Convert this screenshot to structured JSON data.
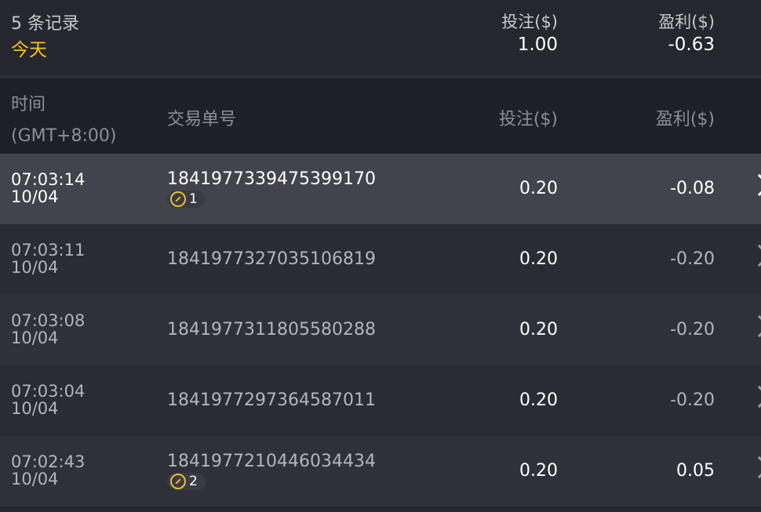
{
  "summary": {
    "count": "5 条记录",
    "period": "今天",
    "bet_label": "投注($)",
    "bet_total": "1.00",
    "pl_label": "盈利($)",
    "pl_total": "-0.63"
  },
  "header": {
    "time": "时间",
    "timezone": "(GMT+8:00)",
    "id": "交易单号",
    "bet": "投注($)",
    "pl": "盈利($)"
  },
  "rows": [
    {
      "time": "07:03:14",
      "date": "10/04",
      "id": "1841977339475399170",
      "badge": "1",
      "bet": "0.20",
      "pl": "-0.08"
    },
    {
      "time": "07:03:11",
      "date": "10/04",
      "id": "1841977327035106819",
      "badge": null,
      "bet": "0.20",
      "pl": "-0.20"
    },
    {
      "time": "07:03:08",
      "date": "10/04",
      "id": "1841977311805580288",
      "badge": null,
      "bet": "0.20",
      "pl": "-0.20"
    },
    {
      "time": "07:03:04",
      "date": "10/04",
      "id": "1841977297364587011",
      "badge": null,
      "bet": "0.20",
      "pl": "-0.20"
    },
    {
      "time": "07:02:43",
      "date": "10/04",
      "id": "1841977210446034434",
      "badge": "2",
      "bet": "0.20",
      "pl": "0.05"
    }
  ],
  "colors": {
    "accent": "#f5c518",
    "selected_row": "#43434d"
  }
}
